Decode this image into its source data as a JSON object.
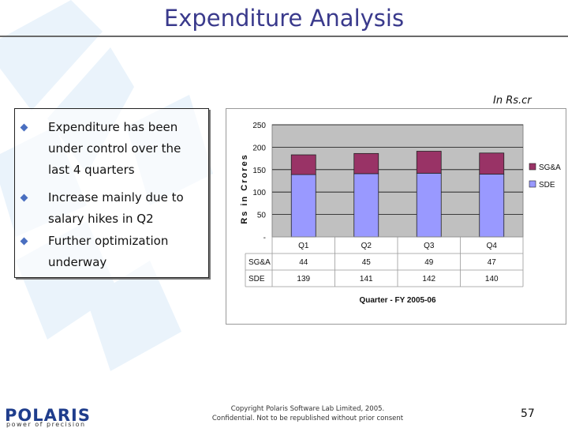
{
  "slide": {
    "title": "Expenditure Analysis",
    "units_note": "In Rs.cr",
    "bullets": [
      "Expenditure has been under control over the last 4 quarters",
      "Increase mainly due to salary hikes in Q2",
      "Further optimization underway"
    ],
    "footer": {
      "logo_text": "POLARIS",
      "logo_tagline": "power of precision",
      "copyright_line1": "Copyright Polaris Software Lab Limited, 2005.",
      "copyright_line2": "Confidential. Not to be republished without prior consent",
      "page_number": "57"
    }
  },
  "chart_data": {
    "type": "bar",
    "stacked": true,
    "categories": [
      "Q1",
      "Q2",
      "Q3",
      "Q4"
    ],
    "series": [
      {
        "name": "SDE",
        "values": [
          139,
          141,
          142,
          140
        ],
        "color": "#9999ff"
      },
      {
        "name": "SG&A",
        "values": [
          44,
          45,
          49,
          47
        ],
        "color": "#993366"
      }
    ],
    "yticks": [
      "250",
      "200",
      "150",
      "100",
      "50",
      "-"
    ],
    "ytick_values": [
      250,
      200,
      150,
      100,
      50,
      0
    ],
    "ylim": [
      0,
      250
    ],
    "ylabel": "Rs in Crores",
    "xlabel": "Quarter - FY 2005-06",
    "title": "",
    "legend_position": "right",
    "data_table": true,
    "grid": true,
    "plot_background": "#c0c0c0"
  }
}
